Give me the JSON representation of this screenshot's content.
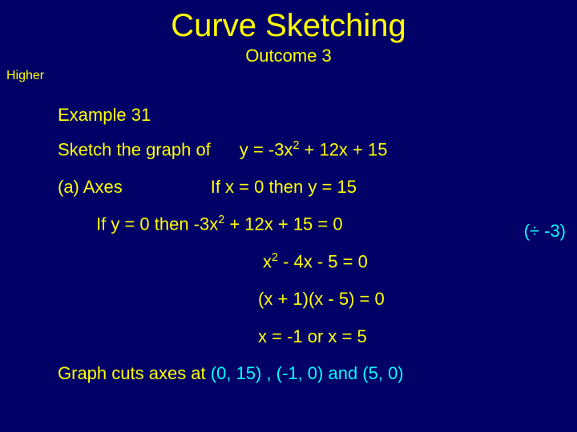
{
  "colors": {
    "background": "#000066",
    "text": "#ffff00",
    "accent": "#00ffff"
  },
  "typography": {
    "font_family": "Comic Sans MS",
    "title_fontsize": 40,
    "body_fontsize": 22,
    "higher_fontsize": 16
  },
  "title": "Curve Sketching",
  "higher_label": "Higher",
  "outcome": "Outcome 3",
  "example_label": "Example 31",
  "sketch_prefix": "Sketch the graph of",
  "equation_y": "y = -3x",
  "equation_y_tail": " + 12x + 15",
  "part_a": "(a) Axes",
  "if_x0": "If  x = 0  then  y = 15",
  "if_y0_prefix": "If  y = 0  then  ",
  "if_y0_eq_lhs": "-3x",
  "if_y0_eq_tail": " + 12x + 15  = 0",
  "div_note": "(÷  -3)",
  "eq2_lhs": "x",
  "eq2_tail": " - 4x - 5  = 0",
  "eq3": "(x + 1)(x - 5)  = 0",
  "eq4": "x = -1   or   x = 5",
  "final_prefix": "Graph cuts axes at  ",
  "final_points": "(0, 15) ,  (-1, 0)  and  (5, 0)"
}
